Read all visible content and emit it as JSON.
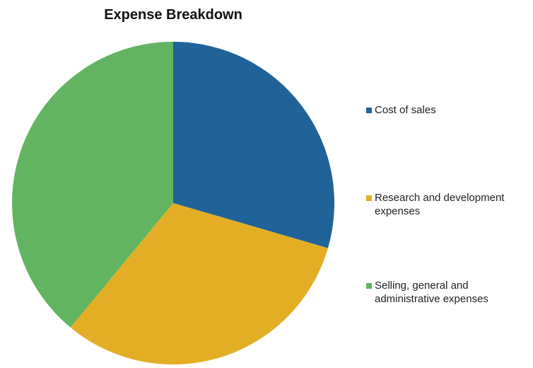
{
  "chart_data": {
    "type": "pie",
    "title": "Expense Breakdown",
    "categories": [
      "Cost of sales",
      "Research and development expenses",
      "Selling, general and administrative expenses"
    ],
    "values": [
      29.5,
      31.5,
      39.0
    ],
    "colors": [
      "#1f6399",
      "#e3ae26",
      "#62b461"
    ],
    "start_angle_deg": 0,
    "direction": "clockwise",
    "legend": {
      "position": "right",
      "items": [
        {
          "label": "Cost of sales",
          "color": "#1f6399"
        },
        {
          "label": "Research and development expenses",
          "color": "#e3ae26"
        },
        {
          "label": "Selling, general and administrative expenses",
          "color": "#62b461"
        }
      ]
    }
  }
}
